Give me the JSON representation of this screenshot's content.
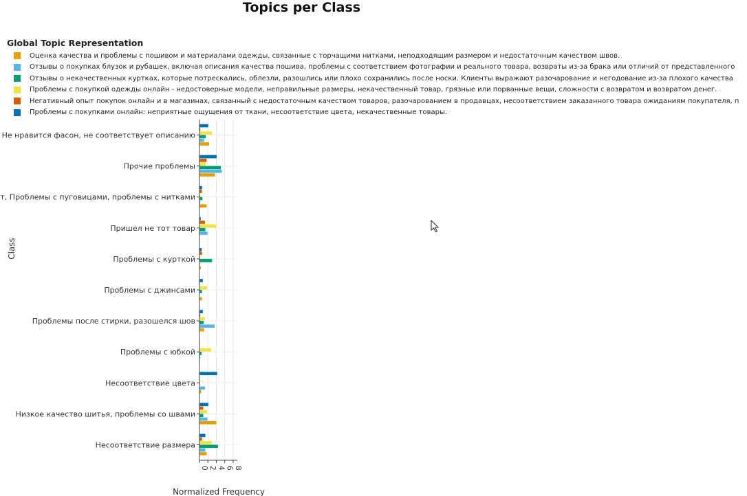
{
  "title": "Topics per Class",
  "legend_title": "Global Topic Representation",
  "chart_data": {
    "type": "bar",
    "orientation": "horizontal",
    "xlabel": "Normalized Frequency",
    "ylabel": "Class",
    "xlim": [
      0,
      9
    ],
    "xticks": [
      "0",
      "2",
      "4",
      "6",
      "8"
    ],
    "categories": [
      "Не нравится фасон, не соответствует описанию",
      "Прочие проблемы",
      "дит, Проблемы с пуговицами, проблемы с нитками",
      "Пришел не тот товар",
      "Проблемы с курткой",
      "Проблемы с джинсами",
      "Проблемы после стирки, разошелся шов",
      "Проблемы с юбкой",
      "Несоответствие цвета",
      "Низкое качество шитья, проблемы со швами",
      "Несоответствие размера"
    ],
    "series": [
      {
        "name": "Оценка качества и проблемы с пошивом и материалами одежды, связанные с торчащими нитками, неподходящим размером и недостаточным качеством швов.",
        "color": "#E69F00",
        "values": [
          2.3,
          3.7,
          1.7,
          0.1,
          0.3,
          0.6,
          1.1,
          0.1,
          0.4,
          4.0,
          1.7
        ]
      },
      {
        "name": "Отзывы о покупках блузок и рубашек, включая описания качества пошива, проблемы с соответствием фотографии и реального товара, возвраты из-за брака или отличий от представленного",
        "color": "#56B4E9",
        "values": [
          1.1,
          5.3,
          0.2,
          1.9,
          0.1,
          0.1,
          3.6,
          0.2,
          1.3,
          1.9,
          1.4
        ]
      },
      {
        "name": "Отзывы о некачественных куртках, которые потрескались, облезли, разошлись или плохо сохранились после носки. Клиенты выражают разочарование и негодование из-за плохого качества",
        "color": "#009E73",
        "values": [
          1.5,
          5.1,
          0.7,
          1.4,
          3.0,
          0.6,
          1.0,
          0.5,
          0.1,
          0.9,
          4.4
        ]
      },
      {
        "name": "Проблемы с покупкой одежды онлайн - недостоверные модели, неправильные размеры, некачественный товар, грязные или порванные вещи, сложности с возвратом и возвратом денег.",
        "color": "#F0E442",
        "values": [
          3.0,
          1.5,
          0.2,
          4.0,
          0.2,
          1.8,
          1.3,
          2.8,
          0.2,
          1.8,
          2.9
        ]
      },
      {
        "name": "Негативный опыт покупок онлайн и в магазинах, связанный с недостаточным качеством товаров, разочарованием в продавцах, несоответствием заказанного товара ожиданиям покупателя, п",
        "color": "#D55E00",
        "values": [
          0.2,
          1.7,
          0.6,
          1.3,
          0.6,
          0.1,
          0.2,
          0.1,
          0.1,
          0.9,
          0.6
        ]
      },
      {
        "name": "Проблемы с покупками онлайн: неприятные ощущения от ткани, несоответствие цвета, некачественные товары.",
        "color": "#0072B2",
        "values": [
          2.1,
          4.1,
          0.6,
          0.3,
          0.5,
          0.8,
          0.8,
          0.1,
          4.2,
          2.1,
          1.4
        ]
      }
    ]
  }
}
